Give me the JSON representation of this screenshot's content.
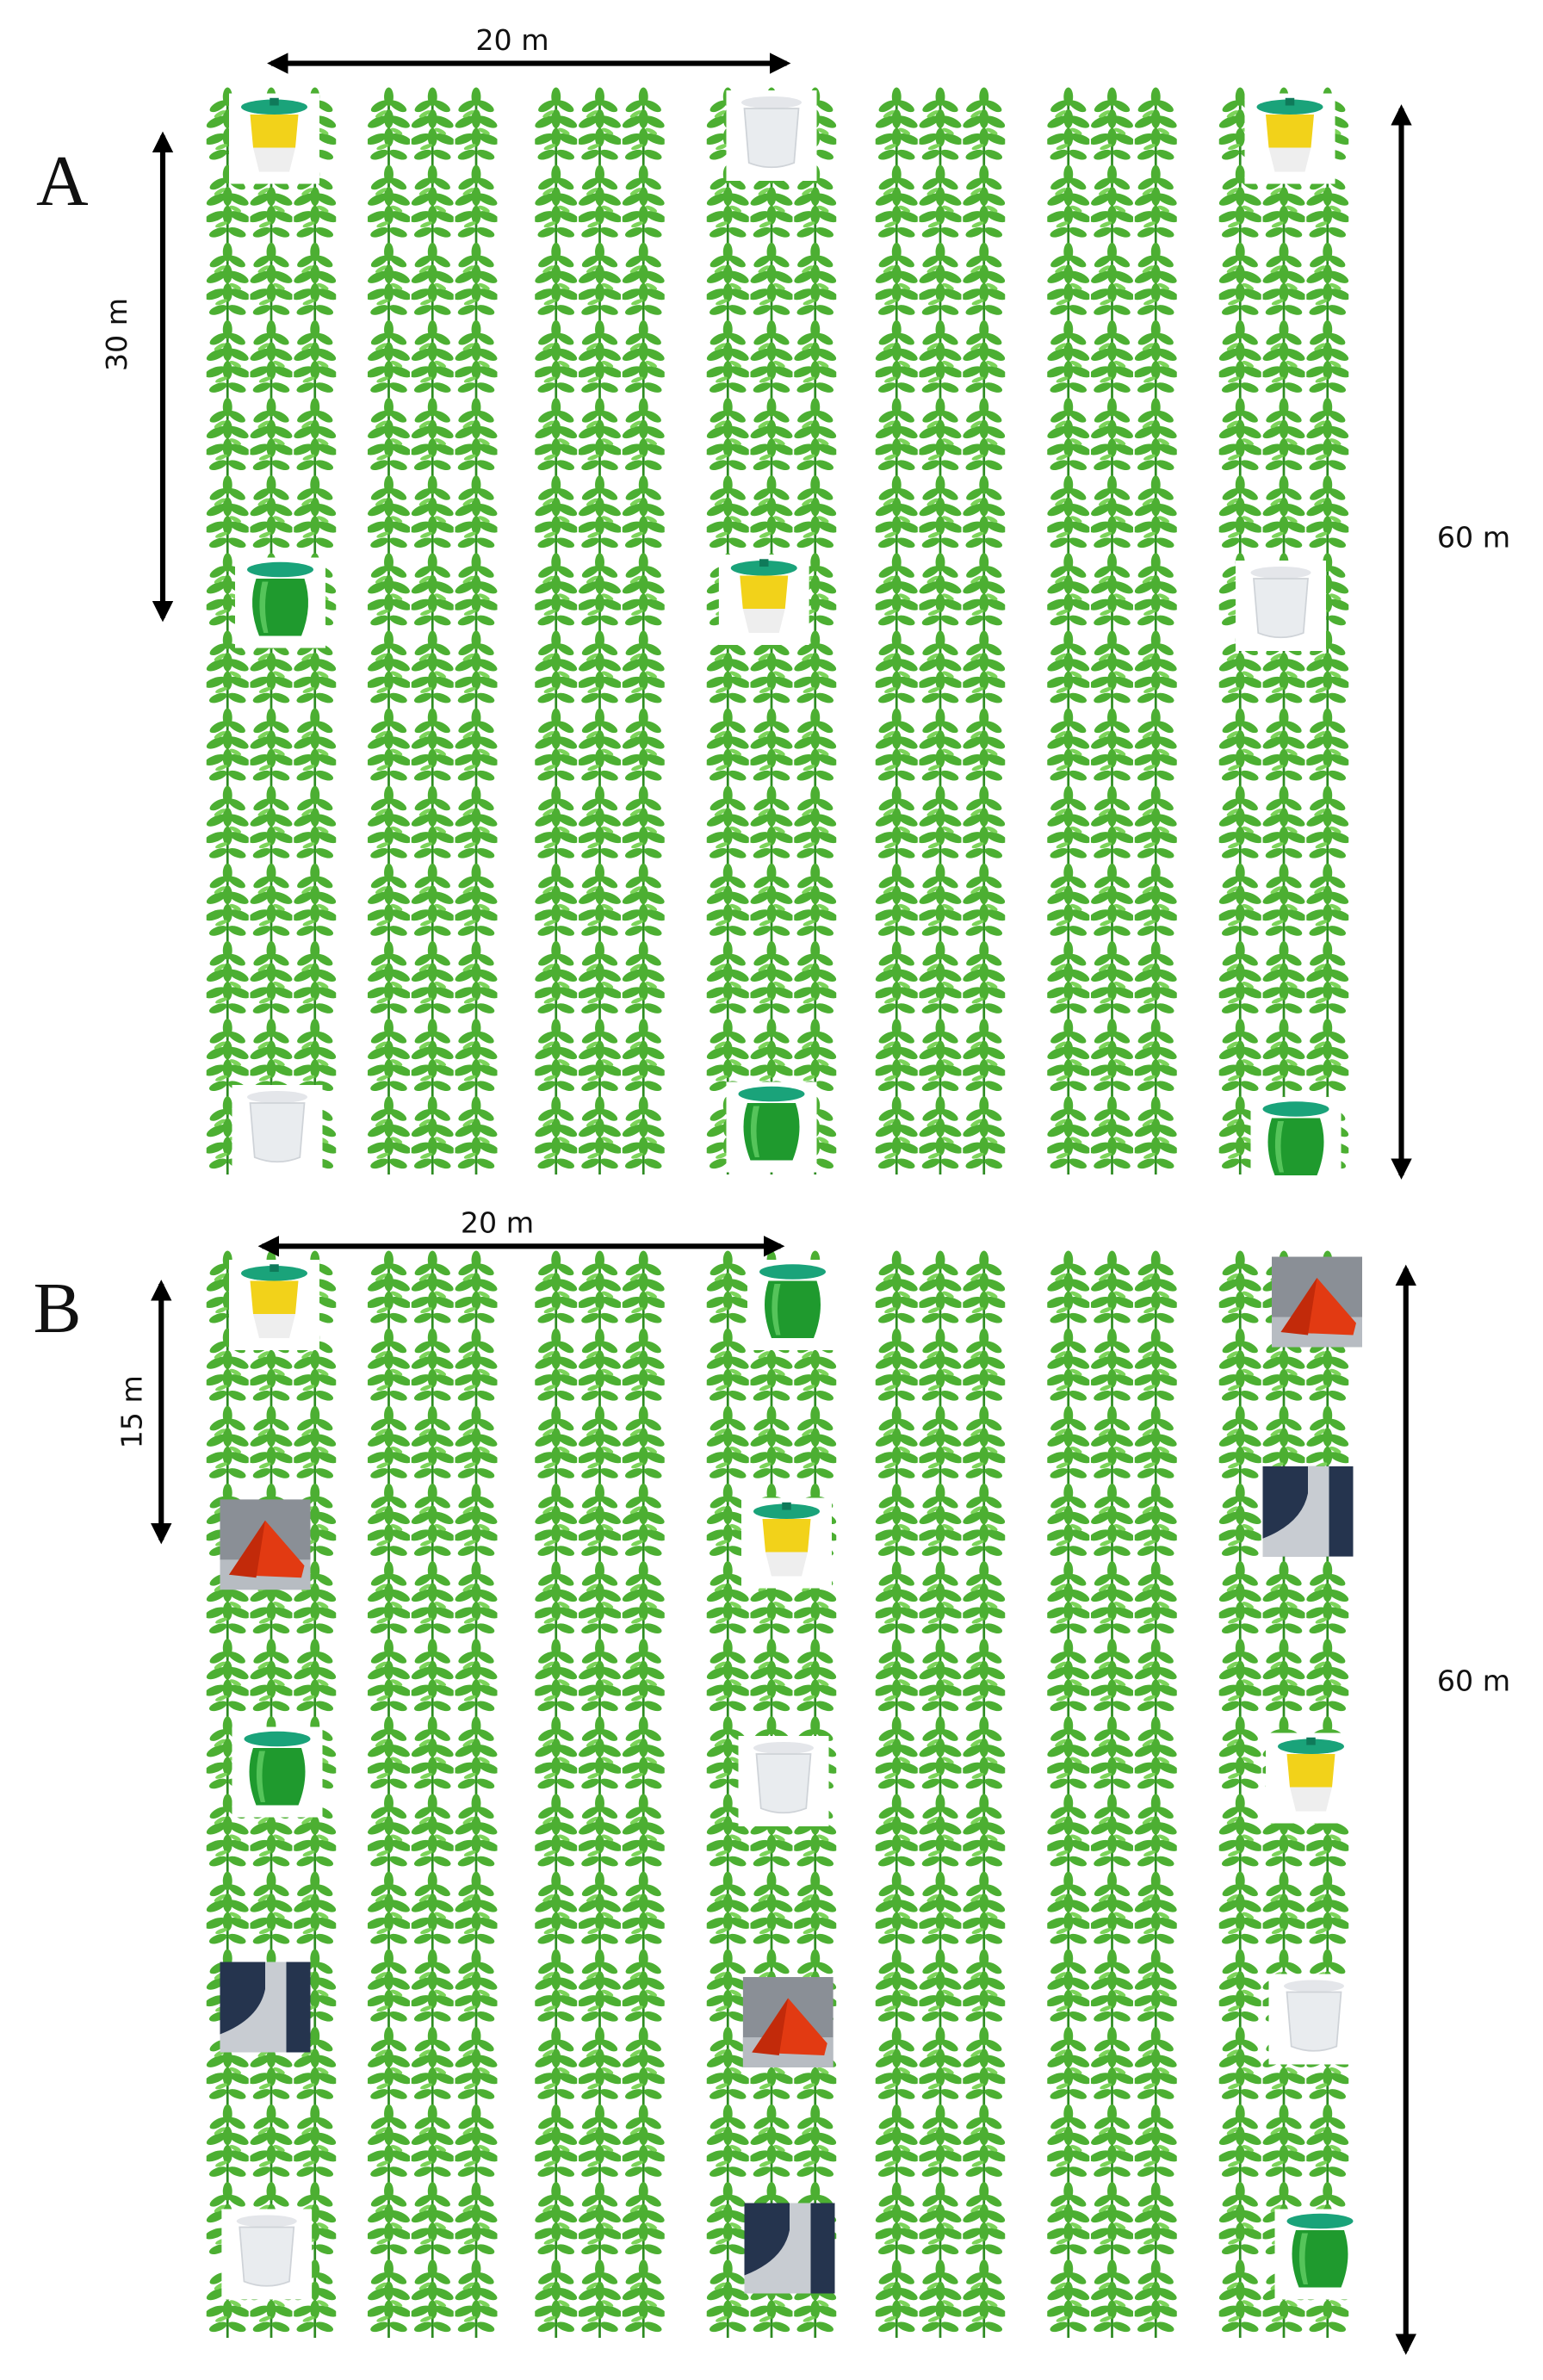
{
  "panels": [
    {
      "label": "A",
      "width_label": "20 m",
      "spacing_label": "30 m",
      "length_label": "60 m"
    },
    {
      "label": "B",
      "width_label": "20 m",
      "spacing_label": "15 m",
      "length_label": "60 m"
    }
  ]
}
